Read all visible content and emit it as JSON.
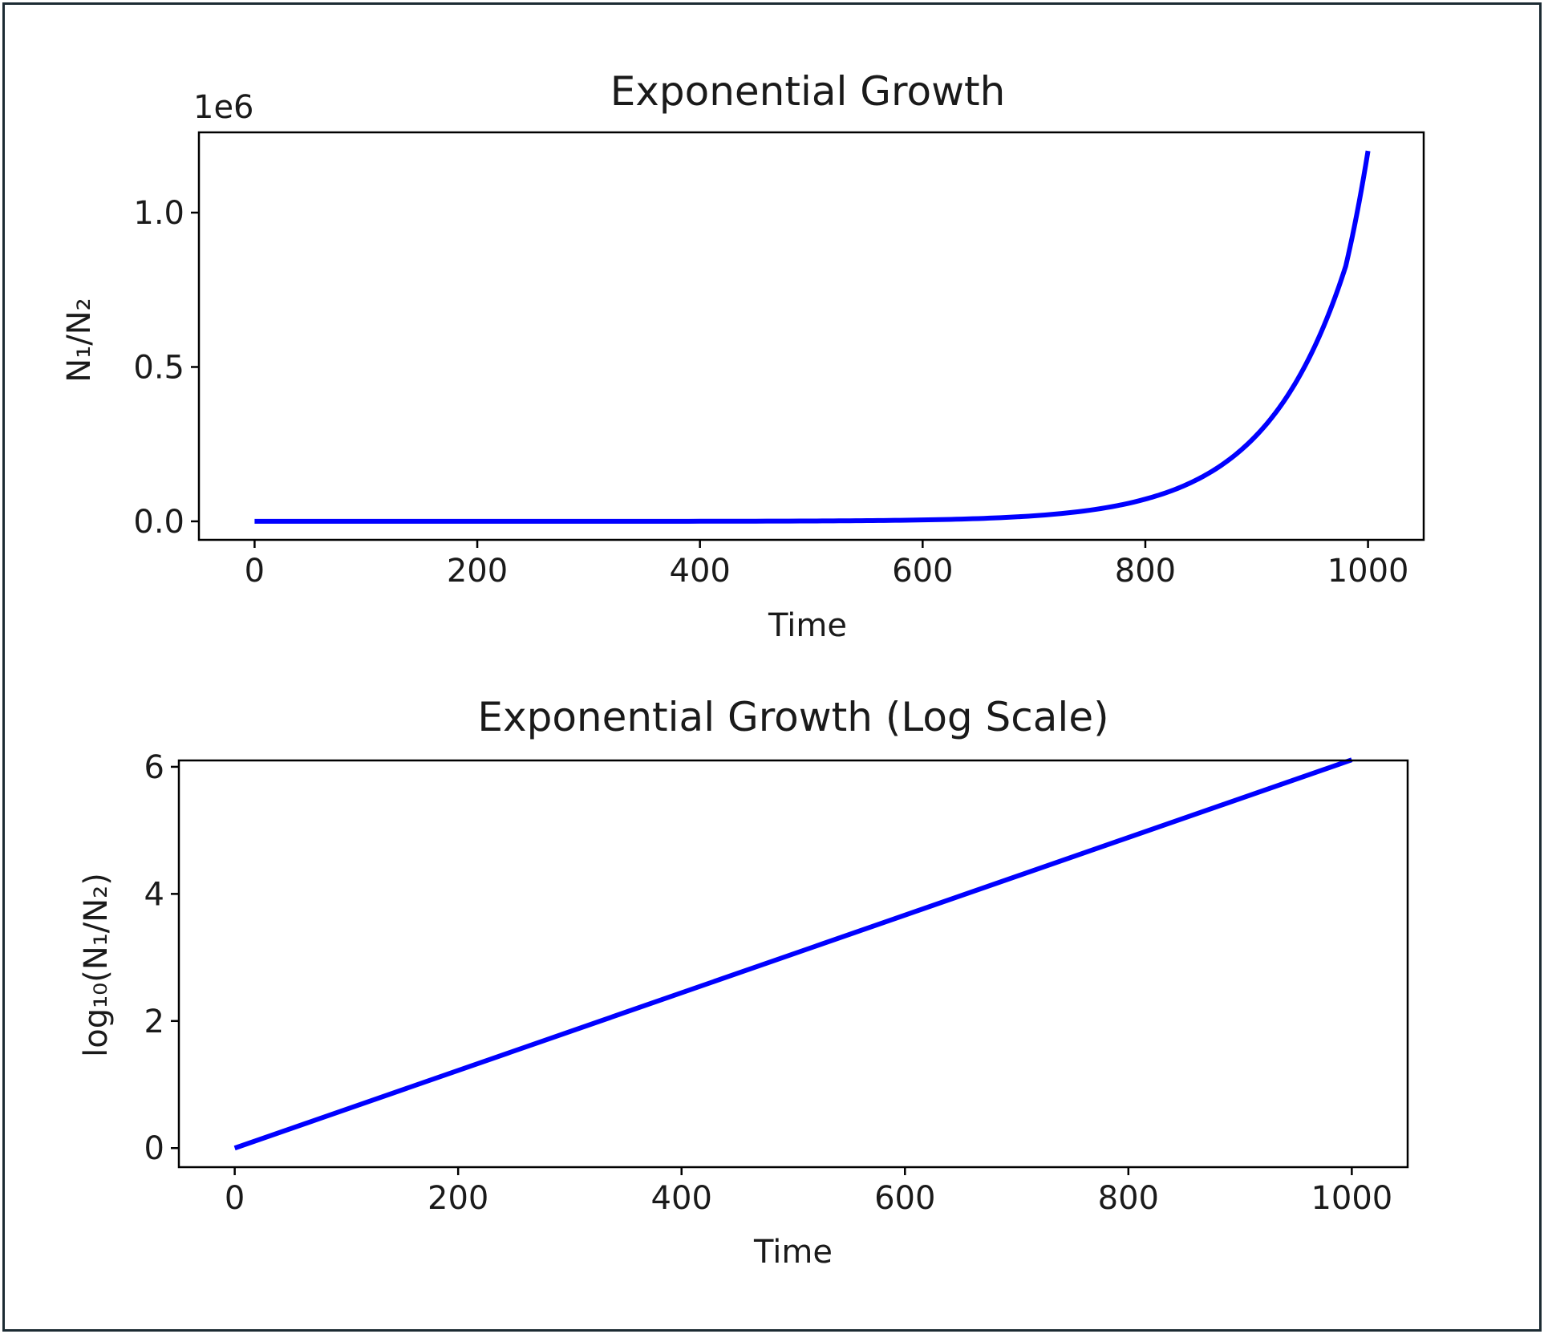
{
  "chart_data": [
    {
      "type": "line",
      "title": "Exponential Growth",
      "xlabel": "Time",
      "ylabel": "N₁/N₂",
      "y_offset_label": "1e6",
      "xlim": [
        -50,
        1050
      ],
      "ylim": [
        -0.06,
        1.26
      ],
      "xticks": [
        0,
        200,
        400,
        600,
        800,
        1000
      ],
      "xtick_labels": [
        "0",
        "200",
        "400",
        "600",
        "800",
        "1000"
      ],
      "yticks": [
        0.0,
        0.5,
        1.0
      ],
      "ytick_labels": [
        "0.0",
        "0.5",
        "1.0"
      ],
      "grid": false,
      "series": [
        {
          "color": "#0000ff",
          "x": [
            0,
            100,
            200,
            300,
            400,
            500,
            550,
            600,
            650,
            700,
            750,
            800,
            820,
            840,
            860,
            880,
            900,
            920,
            940,
            960,
            980,
            1000
          ],
          "values": [
            1e-06,
            4e-06,
            1.7e-05,
            6.9e-05,
            0.00028,
            0.00112,
            0.00225,
            0.0045,
            0.009,
            0.018,
            0.036,
            0.072,
            0.0944,
            0.1238,
            0.1624,
            0.213,
            0.2794,
            0.3664,
            0.4806,
            0.6304,
            0.8268,
            1.2
          ]
        }
      ]
    },
    {
      "type": "line",
      "title": "Exponential Growth (Log Scale)",
      "xlabel": "Time",
      "ylabel": "log₁₀(N₁/N₂)",
      "xlim": [
        -50,
        1050
      ],
      "ylim": [
        -0.3,
        6.1
      ],
      "xticks": [
        0,
        200,
        400,
        600,
        800,
        1000
      ],
      "xtick_labels": [
        "0",
        "200",
        "400",
        "600",
        "800",
        "1000"
      ],
      "yticks": [
        0,
        2,
        4,
        6
      ],
      "ytick_labels": [
        "0",
        "2",
        "4",
        "6"
      ],
      "grid": false,
      "series": [
        {
          "color": "#0000ff",
          "x": [
            0,
            1000
          ],
          "values": [
            0,
            6.11
          ]
        }
      ]
    }
  ]
}
